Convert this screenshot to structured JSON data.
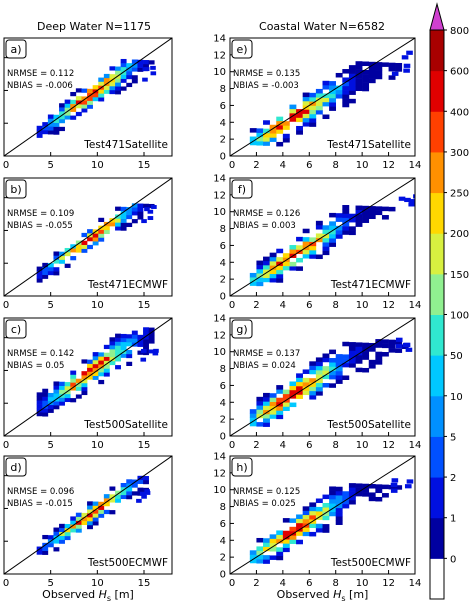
{
  "columns": {
    "left_title": "Deep Water N=1175",
    "right_title": "Coastal Water N=6582"
  },
  "xlabel_prefix": "Observed",
  "xlabel_sym": "H",
  "xlabel_sub": "s",
  "xlabel_unit": " [m]",
  "colorbar": {
    "labels": [
      "800",
      "600",
      "400",
      "300",
      "250",
      "200",
      "150",
      "100",
      "50",
      "10",
      "5",
      "2",
      "1",
      "0"
    ],
    "colors": [
      "#ffffff",
      "#0000a0",
      "#0010e0",
      "#0050ff",
      "#0090ff",
      "#00c8ff",
      "#30e8d0",
      "#90f090",
      "#d8f040",
      "#ffd800",
      "#ff9000",
      "#ff4000",
      "#e00000",
      "#a80000",
      "#d040d0"
    ]
  },
  "chart_data": [
    {
      "type": "heatmap",
      "panel": "a)",
      "name": "Test471Satellite",
      "nrmse": "NRMSE = 0.112",
      "nbias": "NBIAS = -0.006",
      "xlim": [
        0,
        18
      ],
      "ylim": [
        0,
        18
      ],
      "xticks": [
        "0",
        "5",
        "10",
        "15"
      ],
      "yticks": [],
      "grid": false,
      "band": {
        "x0": 3.5,
        "x1": 15.5,
        "y0": 2.5,
        "y1": 14,
        "spread": 1.5,
        "bias": 0.0
      }
    },
    {
      "type": "heatmap",
      "panel": "e)",
      "name": "Test471Satellite",
      "nrmse": "NRMSE = 0.135",
      "nbias": "NBIAS = -0.003",
      "xlim": [
        0,
        14
      ],
      "ylim": [
        0,
        14
      ],
      "xticks": [
        "0",
        "2",
        "4",
        "6",
        "8",
        "10",
        "12",
        "14"
      ],
      "yticks": [
        "0",
        "2",
        "4",
        "6",
        "8",
        "10",
        "12",
        "14"
      ],
      "grid": false,
      "band": {
        "x0": 1.5,
        "x1": 13.0,
        "y0": 1.5,
        "y1": 10.5,
        "spread": 1.5,
        "bias": -0.3
      }
    },
    {
      "type": "heatmap",
      "panel": "b)",
      "name": "Test471ECMWF",
      "nrmse": "NRMSE = 0.109",
      "nbias": "NBIAS = -0.055",
      "xlim": [
        0,
        18
      ],
      "ylim": [
        0,
        18
      ],
      "xticks": [
        "0",
        "5",
        "10",
        "15"
      ],
      "yticks": [],
      "grid": false,
      "band": {
        "x0": 3.5,
        "x1": 15.5,
        "y0": 2.5,
        "y1": 13.5,
        "spread": 1.2,
        "bias": -0.5
      }
    },
    {
      "type": "heatmap",
      "panel": "f)",
      "name": "Test471ECMWF",
      "nrmse": "NRMSE = 0.126",
      "nbias": "NBIAS = 0.003",
      "xlim": [
        0,
        14
      ],
      "ylim": [
        0,
        14
      ],
      "xticks": [
        "0",
        "2",
        "4",
        "6",
        "8",
        "10",
        "12",
        "14"
      ],
      "yticks": [
        "0",
        "2",
        "4",
        "6",
        "8",
        "10",
        "12",
        "14"
      ],
      "grid": false,
      "band": {
        "x0": 1.5,
        "x1": 13.5,
        "y0": 1.5,
        "y1": 10.0,
        "spread": 1.4,
        "bias": 0.0
      }
    },
    {
      "type": "heatmap",
      "panel": "c)",
      "name": "Test500Satellite",
      "nrmse": "NRMSE = 0.142",
      "nbias": "NBIAS = 0.05",
      "xlim": [
        0,
        18
      ],
      "ylim": [
        0,
        18
      ],
      "xticks": [
        "0",
        "5",
        "10",
        "15"
      ],
      "yticks": [],
      "grid": false,
      "band": {
        "x0": 3.5,
        "x1": 15.5,
        "y0": 3.0,
        "y1": 15.5,
        "spread": 1.7,
        "bias": 0.5
      }
    },
    {
      "type": "heatmap",
      "panel": "g)",
      "name": "Test500Satellite",
      "nrmse": "NRMSE = 0.137",
      "nbias": "NBIAS = 0.024",
      "xlim": [
        0,
        14
      ],
      "ylim": [
        0,
        14
      ],
      "xticks": [
        "0",
        "2",
        "4",
        "6",
        "8",
        "10",
        "12",
        "14"
      ],
      "yticks": [
        "0",
        "2",
        "4",
        "6",
        "8",
        "10",
        "12",
        "14"
      ],
      "grid": false,
      "band": {
        "x0": 1.5,
        "x1": 13.5,
        "y0": 1.5,
        "y1": 10.5,
        "spread": 1.6,
        "bias": 0.2
      }
    },
    {
      "type": "heatmap",
      "panel": "d)",
      "name": "Test500ECMWF",
      "nrmse": "NRMSE = 0.096",
      "nbias": "NBIAS = -0.015",
      "xlim": [
        0,
        18
      ],
      "ylim": [
        0,
        18
      ],
      "xticks": [
        "0",
        "5",
        "10",
        "15"
      ],
      "yticks": [],
      "grid": false,
      "band": {
        "x0": 3.5,
        "x1": 15.0,
        "y0": 3.0,
        "y1": 14.0,
        "spread": 1.2,
        "bias": -0.2
      }
    },
    {
      "type": "heatmap",
      "panel": "h)",
      "name": "Test500ECMWF",
      "nrmse": "NRMSE = 0.125",
      "nbias": "NBIAS = 0.025",
      "xlim": [
        0,
        14
      ],
      "ylim": [
        0,
        14
      ],
      "xticks": [
        "0",
        "2",
        "4",
        "6",
        "8",
        "10",
        "12",
        "14"
      ],
      "yticks": [
        "0",
        "2",
        "4",
        "6",
        "8",
        "10",
        "12",
        "14"
      ],
      "grid": false,
      "band": {
        "x0": 1.5,
        "x1": 13.0,
        "y0": 1.5,
        "y1": 10.0,
        "spread": 1.5,
        "bias": 0.2
      }
    }
  ]
}
